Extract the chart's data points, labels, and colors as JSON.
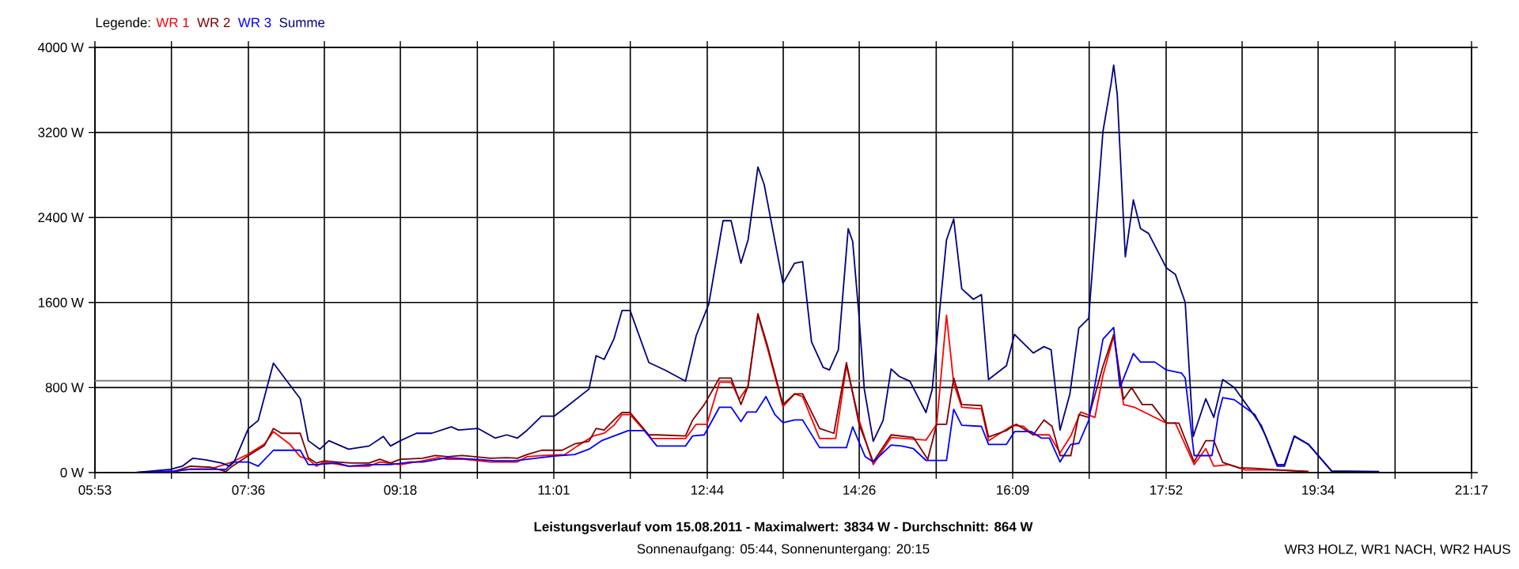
{
  "chart_data": {
    "type": "line",
    "title": "Leistungsverlauf vom 15.08.2011 - Maximalwert: 3834 W - Durchschnitt: 864 W",
    "subtitle": "Sonnenaufgang: 05:44, Sonnenuntergang: 20:15",
    "annotations": [
      "WR3 HOLZ, WR1 NACH, WR2 HAUS"
    ],
    "legend_title": "Legende:",
    "legend": "top left",
    "grid": true,
    "xlim": [
      5.8833,
      21.2833
    ],
    "xticks": [
      {
        "value": 5.8833,
        "label": "05:53"
      },
      {
        "value": 6.7389,
        "label": null
      },
      {
        "value": 7.6,
        "label": "07:36"
      },
      {
        "value": 8.45,
        "label": null
      },
      {
        "value": 9.3,
        "label": "09:18"
      },
      {
        "value": 10.1611,
        "label": null
      },
      {
        "value": 11.0167,
        "label": "11:01"
      },
      {
        "value": 11.8722,
        "label": null
      },
      {
        "value": 12.7333,
        "label": "12:44"
      },
      {
        "value": 13.5833,
        "label": null
      },
      {
        "value": 14.4333,
        "label": "14:26"
      },
      {
        "value": 15.2944,
        "label": null
      },
      {
        "value": 16.15,
        "label": "16:09"
      },
      {
        "value": 17.0056,
        "label": null
      },
      {
        "value": 17.8667,
        "label": "17:52"
      },
      {
        "value": 18.7167,
        "label": null
      },
      {
        "value": 19.5667,
        "label": "19:34"
      },
      {
        "value": 20.4278,
        "label": null
      },
      {
        "value": 21.2833,
        "label": "21:17"
      }
    ],
    "ylim": [
      0,
      4000
    ],
    "yticks": [
      {
        "value": 0,
        "label": "0 W"
      },
      {
        "value": 800,
        "label": "800 W"
      },
      {
        "value": 1600,
        "label": "1600 W"
      },
      {
        "value": 2400,
        "label": "2400 W"
      },
      {
        "value": 3200,
        "label": "3200 W"
      },
      {
        "value": 4000,
        "label": "4000 W"
      }
    ],
    "ref_lines": [
      {
        "axis": "y",
        "value": 864,
        "color": "#808080"
      }
    ],
    "series": [
      {
        "name": "WR 1",
        "color": "#ff0000",
        "x": [
          6.34,
          6.77,
          6.95,
          7.18,
          7.42,
          7.6,
          7.78,
          7.88,
          8.06,
          8.18,
          8.27,
          8.36,
          8.45,
          8.72,
          8.95,
          9.07,
          9.3,
          9.55,
          9.72,
          9.83,
          10.01,
          10.31,
          10.49,
          10.61,
          10.72,
          10.89,
          11.14,
          11.28,
          11.46,
          11.58,
          11.69,
          11.78,
          11.87,
          12.11,
          12.49,
          12.61,
          12.73,
          12.87,
          13.0,
          13.09,
          13.19,
          13.3,
          13.41,
          13.58,
          13.71,
          13.8,
          13.99,
          14.17,
          14.29,
          14.43,
          14.59,
          14.79,
          15.18,
          15.3,
          15.41,
          15.49,
          15.58,
          15.8,
          15.88,
          16.15,
          16.27,
          16.38,
          16.56,
          16.68,
          16.8,
          16.91,
          17.07,
          17.16,
          17.28,
          17.39,
          17.51,
          17.87,
          17.97,
          18.18,
          18.31,
          18.4,
          18.57,
          18.75,
          19.11,
          19.46
        ],
        "values": [
          0,
          10,
          35,
          35,
          100,
          175,
          270,
          385,
          270,
          150,
          125,
          60,
          100,
          60,
          60,
          100,
          75,
          110,
          140,
          125,
          125,
          100,
          100,
          100,
          150,
          160,
          170,
          250,
          345,
          370,
          445,
          545,
          545,
          320,
          320,
          455,
          455,
          850,
          850,
          690,
          815,
          1480,
          1160,
          620,
          740,
          715,
          320,
          320,
          1005,
          500,
          75,
          330,
          305,
          455,
          1480,
          840,
          615,
          600,
          300,
          445,
          435,
          355,
          355,
          185,
          345,
          570,
          520,
          915,
          1285,
          640,
          615,
          465,
          465,
          75,
          225,
          60,
          75,
          25,
          25,
          10
        ]
      },
      {
        "name": "WR 2",
        "color": "#800000",
        "x": [
          6.34,
          6.77,
          6.95,
          7.18,
          7.35,
          7.42,
          7.6,
          7.78,
          7.88,
          7.97,
          8.18,
          8.27,
          8.36,
          8.45,
          8.59,
          8.75,
          8.95,
          9.07,
          9.19,
          9.3,
          9.55,
          9.69,
          9.83,
          9.99,
          10.13,
          10.31,
          10.49,
          10.61,
          10.72,
          10.88,
          11.11,
          11.25,
          11.41,
          11.49,
          11.58,
          11.69,
          11.78,
          11.87,
          12.08,
          12.17,
          12.49,
          12.57,
          12.7,
          12.87,
          13.0,
          13.11,
          13.19,
          13.3,
          13.41,
          13.58,
          13.71,
          13.8,
          13.99,
          14.15,
          14.29,
          14.43,
          14.59,
          14.79,
          15.04,
          15.2,
          15.3,
          15.41,
          15.49,
          15.58,
          15.8,
          15.88,
          16.08,
          16.19,
          16.38,
          16.5,
          16.59,
          16.68,
          16.8,
          16.89,
          17.0,
          17.16,
          17.28,
          17.39,
          17.48,
          17.6,
          17.71,
          17.87,
          18.01,
          18.18,
          18.31,
          18.4,
          18.5,
          18.68,
          18.86,
          19.11,
          19.46
        ],
        "values": [
          0,
          10,
          60,
          50,
          10,
          60,
          160,
          255,
          415,
          370,
          370,
          140,
          90,
          110,
          100,
          90,
          90,
          125,
          90,
          125,
          135,
          160,
          150,
          160,
          150,
          135,
          140,
          135,
          170,
          210,
          210,
          270,
          295,
          415,
          400,
          495,
          565,
          565,
          355,
          355,
          345,
          495,
          640,
          890,
          890,
          640,
          815,
          1495,
          1185,
          640,
          740,
          740,
          415,
          370,
          1035,
          460,
          100,
          355,
          330,
          125,
          455,
          455,
          890,
          640,
          630,
          335,
          395,
          455,
          355,
          495,
          435,
          160,
          160,
          545,
          520,
          1000,
          1300,
          690,
          800,
          640,
          640,
          465,
          465,
          100,
          300,
          300,
          95,
          45,
          40,
          25,
          10
        ]
      },
      {
        "name": "WR 3",
        "color": "#0000ff",
        "x": [
          6.34,
          6.77,
          6.95,
          7.35,
          7.42,
          7.6,
          7.71,
          7.88,
          8.18,
          8.27,
          8.36,
          8.59,
          8.72,
          8.95,
          9.19,
          9.42,
          9.55,
          9.83,
          10.13,
          10.36,
          10.57,
          10.72,
          11.02,
          11.25,
          11.41,
          11.55,
          11.85,
          12.03,
          12.17,
          12.49,
          12.57,
          12.7,
          12.87,
          13.0,
          13.11,
          13.18,
          13.28,
          13.39,
          13.49,
          13.58,
          13.71,
          13.8,
          13.99,
          14.29,
          14.36,
          14.5,
          14.59,
          14.79,
          14.91,
          15.04,
          15.18,
          15.41,
          15.49,
          15.58,
          15.8,
          15.88,
          16.08,
          16.17,
          16.36,
          16.47,
          16.56,
          16.68,
          16.8,
          16.89,
          17.0,
          17.16,
          17.28,
          17.35,
          17.5,
          17.58,
          17.74,
          17.87,
          18.04,
          18.08,
          18.18,
          18.38,
          18.45,
          18.5,
          18.63,
          18.86,
          18.98,
          19.11,
          19.19,
          19.3,
          19.46,
          19.72
        ],
        "values": [
          0,
          15,
          30,
          30,
          100,
          100,
          60,
          210,
          210,
          75,
          75,
          90,
          60,
          75,
          75,
          100,
          100,
          140,
          125,
          110,
          110,
          125,
          155,
          170,
          220,
          300,
          395,
          395,
          250,
          250,
          345,
          355,
          615,
          615,
          480,
          570,
          570,
          715,
          545,
          470,
          495,
          495,
          235,
          235,
          430,
          150,
          100,
          260,
          250,
          225,
          115,
          115,
          595,
          445,
          435,
          265,
          265,
          385,
          385,
          325,
          325,
          100,
          265,
          275,
          490,
          1255,
          1365,
          800,
          1120,
          1040,
          1040,
          965,
          935,
          890,
          160,
          160,
          545,
          705,
          685,
          545,
          345,
          60,
          60,
          345,
          265,
          10
        ]
      },
      {
        "name": "Summe",
        "color": "#000080",
        "x": [
          6.34,
          6.73,
          6.86,
          6.98,
          7.12,
          7.3,
          7.39,
          7.44,
          7.6,
          7.71,
          7.88,
          8.18,
          8.27,
          8.4,
          8.5,
          8.72,
          8.95,
          9.11,
          9.19,
          9.3,
          9.48,
          9.65,
          9.87,
          9.95,
          10.17,
          10.36,
          10.49,
          10.61,
          10.72,
          10.88,
          11.02,
          11.19,
          11.41,
          11.49,
          11.58,
          11.69,
          11.78,
          11.87,
          12.08,
          12.26,
          12.49,
          12.61,
          12.75,
          12.91,
          13.0,
          13.11,
          13.19,
          13.3,
          13.37,
          13.58,
          13.71,
          13.8,
          13.9,
          14.03,
          14.1,
          14.2,
          14.31,
          14.36,
          14.43,
          14.49,
          14.59,
          14.7,
          14.79,
          14.88,
          15.0,
          15.18,
          15.25,
          15.34,
          15.41,
          15.49,
          15.58,
          15.71,
          15.8,
          15.88,
          16.08,
          16.17,
          16.38,
          16.5,
          16.58,
          16.68,
          16.79,
          16.89,
          17.0,
          17.16,
          17.25,
          17.28,
          17.32,
          17.41,
          17.5,
          17.58,
          17.67,
          17.87,
          17.97,
          18.08,
          18.17,
          18.31,
          18.4,
          18.5,
          18.63,
          18.93,
          19.11,
          19.19,
          19.3,
          19.46,
          19.72,
          20.25
        ],
        "values": [
          0,
          30,
          60,
          135,
          120,
          90,
          60,
          100,
          415,
          490,
          1030,
          695,
          300,
          220,
          300,
          220,
          250,
          340,
          250,
          300,
          370,
          370,
          430,
          400,
          415,
          325,
          355,
          325,
          400,
          530,
          530,
          640,
          785,
          1100,
          1065,
          1260,
          1525,
          1525,
          1035,
          965,
          860,
          1290,
          1585,
          2370,
          2370,
          1970,
          2190,
          2875,
          2710,
          1780,
          1970,
          1985,
          1230,
          990,
          965,
          1155,
          2295,
          2175,
          1480,
          785,
          295,
          490,
          975,
          905,
          860,
          565,
          785,
          1585,
          2190,
          2385,
          1730,
          1630,
          1675,
          875,
          1005,
          1300,
          1125,
          1185,
          1155,
          400,
          740,
          1360,
          1450,
          3210,
          3655,
          3834,
          3555,
          2030,
          2565,
          2295,
          2250,
          1925,
          1865,
          1600,
          340,
          695,
          520,
          875,
          800,
          445,
          75,
          75,
          340,
          265,
          15,
          10
        ]
      }
    ]
  }
}
